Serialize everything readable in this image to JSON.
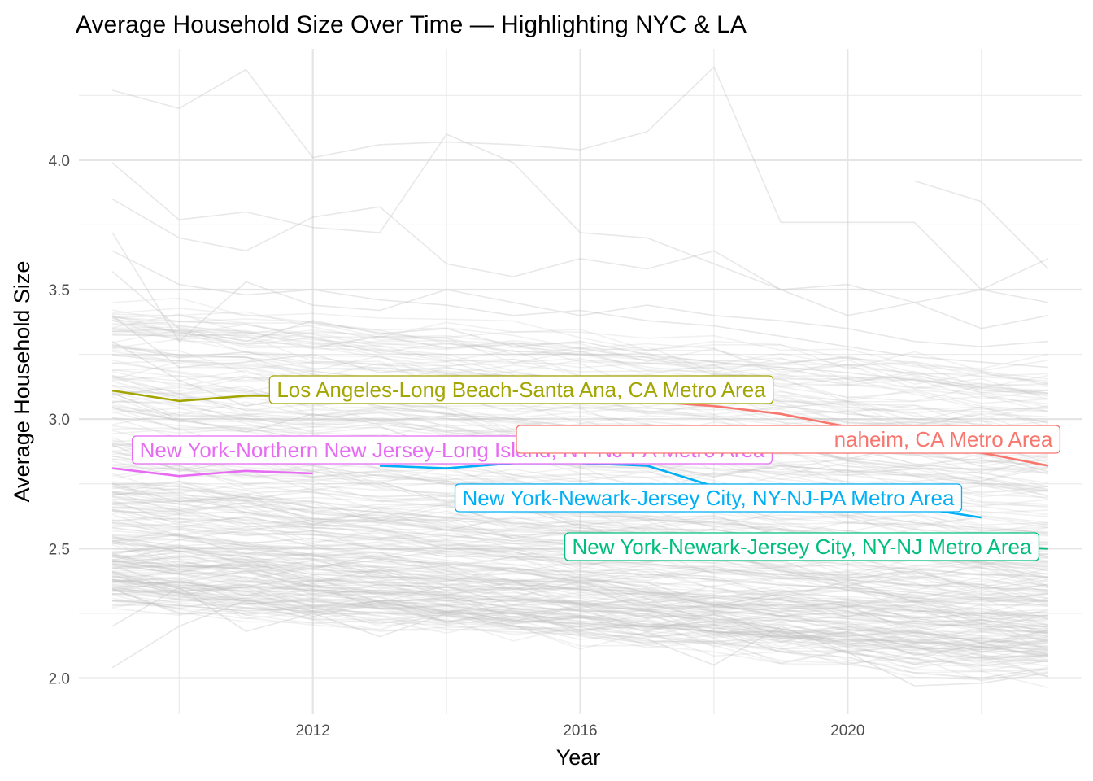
{
  "chart_data": {
    "type": "line",
    "title": "Average Household Size Over Time — Highlighting NYC & LA",
    "xlabel": "Year",
    "ylabel": "Average Household Size",
    "xlim": [
      2008.5,
      2023.5
    ],
    "ylim": [
      1.86,
      4.43
    ],
    "x_ticks": [
      2012,
      2016,
      2020
    ],
    "x_tick_labels": [
      "2012",
      "2016",
      "2020"
    ],
    "y_ticks": [
      2.0,
      2.5,
      3.0,
      3.5,
      4.0
    ],
    "y_tick_labels": [
      "2.0",
      "2.5",
      "3.0",
      "3.5",
      "4.0"
    ],
    "grid": true,
    "legend": "none",
    "background_series_color": "#bebebe",
    "highlighted_series": [
      {
        "name": "Los Angeles-Long Beach-Santa Ana, CA Metro Area",
        "color": "#a3a500",
        "x": [
          2009,
          2010,
          2011,
          2012
        ],
        "y": [
          3.11,
          3.07,
          3.09,
          3.09
        ]
      },
      {
        "name": "New York-Northern New Jersey-Long Island, NY-NJ-PA Metro Area",
        "color": "#e76bf3",
        "x": [
          2009,
          2010,
          2011,
          2012
        ],
        "y": [
          2.81,
          2.78,
          2.8,
          2.79
        ]
      },
      {
        "name": "Los Angeles-Long Beach-Anaheim, CA Metro Area",
        "label": "naheim, CA Metro Area",
        "color": "#f8766d",
        "x": [
          2013,
          2014,
          2015,
          2016,
          2017,
          2018,
          2019,
          2020,
          2021,
          2022,
          2023
        ],
        "y": [
          3.09,
          3.1,
          3.09,
          3.08,
          3.07,
          3.05,
          3.02,
          2.97,
          2.93,
          2.87,
          2.82
        ]
      },
      {
        "name": "New York-Newark-Jersey City, NY-NJ-PA Metro Area",
        "color": "#00b0f6",
        "x": [
          2013,
          2014,
          2015,
          2016,
          2017,
          2018,
          2019,
          2020,
          2021,
          2022
        ],
        "y": [
          2.82,
          2.81,
          2.83,
          2.83,
          2.82,
          2.74,
          2.7,
          2.68,
          2.66,
          2.62
        ]
      },
      {
        "name": "New York-Newark-Jersey City, NY-NJ Metro Area",
        "color": "#00bf7d",
        "x": [
          2021,
          2022,
          2023
        ],
        "y": [
          2.53,
          2.51,
          2.5
        ]
      }
    ],
    "background_sample": [
      {
        "x": [
          2009,
          2010,
          2011,
          2012,
          2013,
          2014,
          2015,
          2016,
          2017,
          2018,
          2019,
          2020,
          2021,
          2022,
          2023
        ],
        "y": [
          4.27,
          4.2,
          4.35,
          4.01,
          4.06,
          4.07,
          4.06,
          4.04,
          4.11,
          4.36,
          3.76,
          3.76,
          3.76,
          3.5,
          3.62
        ]
      },
      {
        "x": [
          2009,
          2010,
          2011,
          2012,
          2013,
          2014,
          2015,
          2016,
          2017,
          2018,
          2019,
          2020,
          2021,
          2022,
          2023
        ],
        "y": [
          3.99,
          3.77,
          3.8,
          3.74,
          3.72,
          4.1,
          3.99,
          3.72,
          3.7,
          3.6,
          3.5,
          3.4,
          3.45,
          3.5,
          3.45
        ]
      },
      {
        "x": [
          2021,
          2022,
          2023
        ],
        "y": [
          3.92,
          3.84,
          3.58
        ]
      },
      {
        "x": [
          2009,
          2010,
          2011,
          2012,
          2013,
          2014,
          2015,
          2016,
          2017,
          2018,
          2019,
          2020,
          2021,
          2022,
          2023
        ],
        "y": [
          3.85,
          3.7,
          3.65,
          3.78,
          3.82,
          3.6,
          3.55,
          3.62,
          3.58,
          3.65,
          3.5,
          3.52,
          3.45,
          3.35,
          3.4
        ]
      },
      {
        "x": [
          2009,
          2010,
          2011,
          2012,
          2013,
          2014,
          2015,
          2016,
          2017,
          2018,
          2019,
          2020,
          2021,
          2022,
          2023
        ],
        "y": [
          3.72,
          3.3,
          3.53,
          3.44,
          3.42,
          3.5,
          3.45,
          3.4,
          3.44,
          3.4,
          3.38,
          3.35,
          3.3,
          3.28,
          3.3
        ]
      },
      {
        "x": [
          2009,
          2010,
          2011,
          2012,
          2013,
          2014,
          2015,
          2016,
          2017,
          2018,
          2019,
          2020,
          2021,
          2022,
          2023
        ],
        "y": [
          3.57,
          3.35,
          3.3,
          3.38,
          3.33,
          3.35,
          3.28,
          3.3,
          3.25,
          3.22,
          3.2,
          3.18,
          3.15,
          3.12,
          3.1
        ]
      },
      {
        "x": [
          2009,
          2010,
          2011,
          2012,
          2013,
          2014,
          2015,
          2016,
          2017,
          2018,
          2019,
          2020,
          2021,
          2022,
          2023
        ],
        "y": [
          3.4,
          3.2,
          3.22,
          3.25,
          3.18,
          3.2,
          3.15,
          3.12,
          3.1,
          3.08,
          3.05,
          3.02,
          3.0,
          2.98,
          2.96
        ]
      },
      {
        "x": [
          2009,
          2010,
          2011,
          2012,
          2013,
          2014,
          2015,
          2016,
          2017,
          2018,
          2019,
          2020,
          2021,
          2022,
          2023
        ],
        "y": [
          3.1,
          3.0,
          2.95,
          3.02,
          2.98,
          2.95,
          2.92,
          2.9,
          2.88,
          2.85,
          2.82,
          2.8,
          2.78,
          2.75,
          2.74
        ]
      },
      {
        "x": [
          2009,
          2010,
          2011,
          2012,
          2013,
          2014,
          2015,
          2016,
          2017,
          2018,
          2019,
          2020,
          2021,
          2022,
          2023
        ],
        "y": [
          2.9,
          2.8,
          2.84,
          2.82,
          2.78,
          2.76,
          2.74,
          2.72,
          2.7,
          2.68,
          2.66,
          2.64,
          2.6,
          2.58,
          2.56
        ]
      },
      {
        "x": [
          2009,
          2010,
          2011,
          2012,
          2013,
          2014,
          2015,
          2016,
          2017,
          2018,
          2019,
          2020,
          2021,
          2022,
          2023
        ],
        "y": [
          2.75,
          2.68,
          2.7,
          2.66,
          2.64,
          2.62,
          2.6,
          2.58,
          2.56,
          2.54,
          2.52,
          2.5,
          2.48,
          2.46,
          2.45
        ]
      },
      {
        "x": [
          2009,
          2010,
          2011,
          2012,
          2013,
          2014,
          2015,
          2016,
          2017,
          2018,
          2019,
          2020,
          2021,
          2022,
          2023
        ],
        "y": [
          2.65,
          2.6,
          2.62,
          2.58,
          2.57,
          2.55,
          2.53,
          2.52,
          2.5,
          2.48,
          2.46,
          2.44,
          2.42,
          2.4,
          2.39
        ]
      },
      {
        "x": [
          2009,
          2010,
          2011,
          2012,
          2013,
          2014,
          2015,
          2016,
          2017,
          2018,
          2019,
          2020,
          2021,
          2022,
          2023
        ],
        "y": [
          2.58,
          2.55,
          2.52,
          2.54,
          2.5,
          2.49,
          2.47,
          2.46,
          2.44,
          2.42,
          2.4,
          2.38,
          2.36,
          2.35,
          2.34
        ]
      },
      {
        "x": [
          2009,
          2010,
          2011,
          2012,
          2013,
          2014,
          2015,
          2016,
          2017,
          2018,
          2019,
          2020,
          2021,
          2022,
          2023
        ],
        "y": [
          2.52,
          2.5,
          2.48,
          2.47,
          2.46,
          2.44,
          2.42,
          2.41,
          2.4,
          2.38,
          2.36,
          2.35,
          2.33,
          2.31,
          2.3
        ]
      },
      {
        "x": [
          2009,
          2010,
          2011,
          2012,
          2013,
          2014,
          2015,
          2016,
          2017,
          2018,
          2019,
          2020,
          2021,
          2022,
          2023
        ],
        "y": [
          2.45,
          2.42,
          2.44,
          2.4,
          2.39,
          2.38,
          2.36,
          2.35,
          2.33,
          2.32,
          2.3,
          2.28,
          2.26,
          2.25,
          2.24
        ]
      },
      {
        "x": [
          2009,
          2010,
          2011,
          2012,
          2013,
          2014,
          2015,
          2016,
          2017,
          2018,
          2019,
          2020,
          2021,
          2022,
          2023
        ],
        "y": [
          2.38,
          2.36,
          2.35,
          2.34,
          2.33,
          2.31,
          2.3,
          2.29,
          2.28,
          2.26,
          2.24,
          2.23,
          2.21,
          2.2,
          2.19
        ]
      },
      {
        "x": [
          2009,
          2010,
          2011,
          2012,
          2013,
          2014,
          2015,
          2016,
          2017,
          2018,
          2019,
          2020,
          2021,
          2022,
          2023
        ],
        "y": [
          2.3,
          2.28,
          2.26,
          2.27,
          2.25,
          2.24,
          2.22,
          2.21,
          2.2,
          2.18,
          2.16,
          2.15,
          2.14,
          2.12,
          2.11
        ]
      },
      {
        "x": [
          2009,
          2010,
          2011,
          2012,
          2013,
          2014,
          2015,
          2016,
          2017,
          2018,
          2019,
          2020,
          2021,
          2022,
          2023
        ],
        "y": [
          2.2,
          2.35,
          2.18,
          2.25,
          2.16,
          2.25,
          2.2,
          2.18,
          2.15,
          2.05,
          2.2,
          2.1,
          1.97,
          1.98,
          2.02
        ]
      },
      {
        "x": [
          2009,
          2010,
          2011,
          2012,
          2013,
          2014,
          2015,
          2016,
          2017,
          2018,
          2019,
          2020,
          2021,
          2022,
          2023
        ],
        "y": [
          2.04,
          2.2,
          2.3,
          2.26,
          2.3,
          2.28,
          2.25,
          2.22,
          2.2,
          2.18,
          2.1,
          2.08,
          2.02,
          2.0,
          2.04
        ]
      },
      {
        "x": [
          2009,
          2010,
          2011,
          2012,
          2013,
          2014,
          2015,
          2016,
          2017,
          2018,
          2019,
          2020,
          2021,
          2022,
          2023
        ],
        "y": [
          3.3,
          3.15,
          3.05,
          3.1,
          3.05,
          3.02,
          3.0,
          2.97,
          2.95,
          2.92,
          2.9,
          2.88,
          2.86,
          2.84,
          2.82
        ]
      },
      {
        "x": [
          2009,
          2010,
          2011,
          2012,
          2013,
          2014,
          2015,
          2016,
          2017,
          2018,
          2019,
          2020,
          2021,
          2022,
          2023
        ],
        "y": [
          3.65,
          3.52,
          3.48,
          3.5,
          3.46,
          3.44,
          3.4,
          3.42,
          3.38,
          3.36,
          3.32,
          3.28,
          3.24,
          3.22,
          3.2
        ]
      }
    ]
  }
}
